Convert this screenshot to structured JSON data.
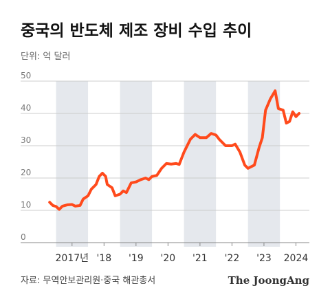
{
  "chart_data": {
    "type": "line",
    "title": "중국의 반도체 제조 장비 수입 추이",
    "subtitle": "단위: 억 달러",
    "source": "자료: 무역안보관리원·중국 해관총서",
    "brand": "The JoongAng",
    "x": [
      2016.8,
      2016.9,
      2017.0,
      2017.1,
      2017.2,
      2017.35,
      2017.5,
      2017.6,
      2017.75,
      2017.85,
      2018.0,
      2018.1,
      2018.25,
      2018.35,
      2018.45,
      2018.55,
      2018.6,
      2018.75,
      2018.85,
      2019.0,
      2019.1,
      2019.2,
      2019.35,
      2019.5,
      2019.65,
      2019.8,
      2019.9,
      2020.0,
      2020.15,
      2020.3,
      2020.45,
      2020.6,
      2020.75,
      2020.85,
      2021.0,
      2021.2,
      2021.35,
      2021.5,
      2021.7,
      2021.85,
      2022.0,
      2022.1,
      2022.3,
      2022.5,
      2022.6,
      2022.75,
      2022.9,
      2023.0,
      2023.2,
      2023.35,
      2023.45,
      2023.55,
      2023.7,
      2023.85,
      2023.95,
      2024.1,
      2024.2,
      2024.3,
      2024.4,
      2024.5,
      2024.6
    ],
    "series": [
      {
        "color": "#ff4a1c",
        "values": [
          12.5,
          11.5,
          11.2,
          10.3,
          11.3,
          11.7,
          11.8,
          11.3,
          11.5,
          13.5,
          14.5,
          16.5,
          18.0,
          20.5,
          21.5,
          20.5,
          18.0,
          17.0,
          14.5,
          15.0,
          16.0,
          15.5,
          18.5,
          18.8,
          19.5,
          20.0,
          19.5,
          20.5,
          20.8,
          23.0,
          24.5,
          24.3,
          24.5,
          24.2,
          28.0,
          32.0,
          33.5,
          32.5,
          32.5,
          33.8,
          33.3,
          32.0,
          30.0,
          30.0,
          30.5,
          28.0,
          24.0,
          23.0,
          24.0,
          29.5,
          32.5,
          41.0,
          44.5,
          47.0,
          41.5,
          41.0,
          37.0,
          37.5,
          40.5,
          39.0,
          40.0
        ]
      }
    ],
    "xlim": [
      2016.0,
      2024.92
    ],
    "xticks": [
      {
        "value": 2017.5,
        "label": "2017년"
      },
      {
        "value": 2018.5,
        "label": "'18"
      },
      {
        "value": 2019.5,
        "label": "'19"
      },
      {
        "value": 2020.5,
        "label": "'20"
      },
      {
        "value": 2021.5,
        "label": "'21"
      },
      {
        "value": 2022.5,
        "label": "'22"
      },
      {
        "value": 2023.5,
        "label": "'23"
      },
      {
        "value": 2024.5,
        "label": "2024"
      }
    ],
    "ylim": [
      0,
      50
    ],
    "yticks": [
      0,
      10,
      20,
      30,
      40,
      50
    ],
    "grid": true
  }
}
